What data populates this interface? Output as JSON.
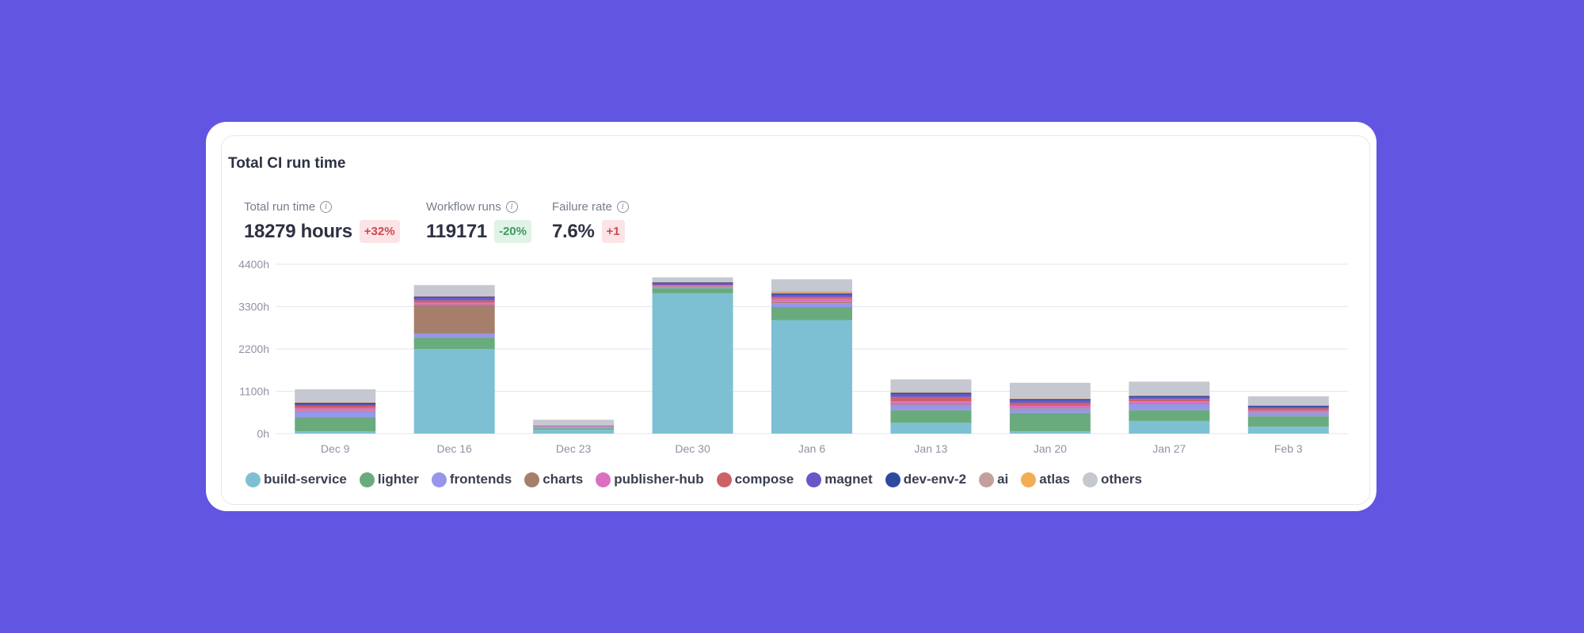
{
  "card": {
    "title": "Total CI run time"
  },
  "metrics": [
    {
      "label": "Total run time",
      "value": "18279 hours",
      "delta": "+32%",
      "trend": "up"
    },
    {
      "label": "Workflow runs",
      "value": "119171",
      "delta": "-20%",
      "trend": "down"
    },
    {
      "label": "Failure rate",
      "value": "7.6%",
      "delta": "+1",
      "trend": "up"
    }
  ],
  "chart_data": {
    "type": "bar",
    "stacked": true,
    "title": "Total CI run time",
    "xlabel": "",
    "ylabel": "",
    "ylim": [
      0,
      4400
    ],
    "yticks": [
      0,
      1100,
      2200,
      3300,
      4400
    ],
    "ytick_labels": [
      "0h",
      "1100h",
      "2200h",
      "3300h",
      "4400h"
    ],
    "grid": true,
    "legend_position": "bottom",
    "categories": [
      "Dec 9",
      "Dec 16",
      "Dec 23",
      "Dec 30",
      "Jan 6",
      "Jan 13",
      "Jan 20",
      "Jan 27",
      "Feb 3"
    ],
    "series": [
      {
        "name": "build-service",
        "color": "#7ec0d3",
        "values": [
          60,
          2200,
          100,
          3650,
          2950,
          280,
          60,
          330,
          180
        ]
      },
      {
        "name": "lighter",
        "color": "#6aab7e",
        "values": [
          370,
          300,
          40,
          130,
          340,
          330,
          480,
          280,
          270
        ]
      },
      {
        "name": "frontends",
        "color": "#9796ea",
        "values": [
          150,
          100,
          20,
          20,
          100,
          140,
          110,
          160,
          100
        ]
      },
      {
        "name": "charts",
        "color": "#a67e6c",
        "values": [
          20,
          750,
          10,
          20,
          30,
          20,
          20,
          20,
          20
        ]
      },
      {
        "name": "publisher-hub",
        "color": "#da70c2",
        "values": [
          60,
          50,
          10,
          20,
          80,
          70,
          60,
          50,
          30
        ]
      },
      {
        "name": "compose",
        "color": "#cc6168",
        "values": [
          60,
          60,
          10,
          20,
          50,
          110,
          70,
          60,
          60
        ]
      },
      {
        "name": "magnet",
        "color": "#6a55c9",
        "values": [
          40,
          70,
          10,
          40,
          60,
          70,
          60,
          40,
          30
        ]
      },
      {
        "name": "dev-env-2",
        "color": "#2d4a9e",
        "values": [
          40,
          30,
          10,
          30,
          30,
          40,
          40,
          40,
          30
        ]
      },
      {
        "name": "ai",
        "color": "#c4a09d",
        "values": [
          10,
          20,
          5,
          10,
          30,
          10,
          10,
          10,
          10
        ]
      },
      {
        "name": "atlas",
        "color": "#f2ad55",
        "values": [
          10,
          10,
          5,
          10,
          30,
          10,
          10,
          10,
          10
        ]
      },
      {
        "name": "others",
        "color": "#c5c8d0",
        "values": [
          330,
          270,
          140,
          110,
          310,
          330,
          400,
          350,
          230
        ]
      }
    ]
  }
}
